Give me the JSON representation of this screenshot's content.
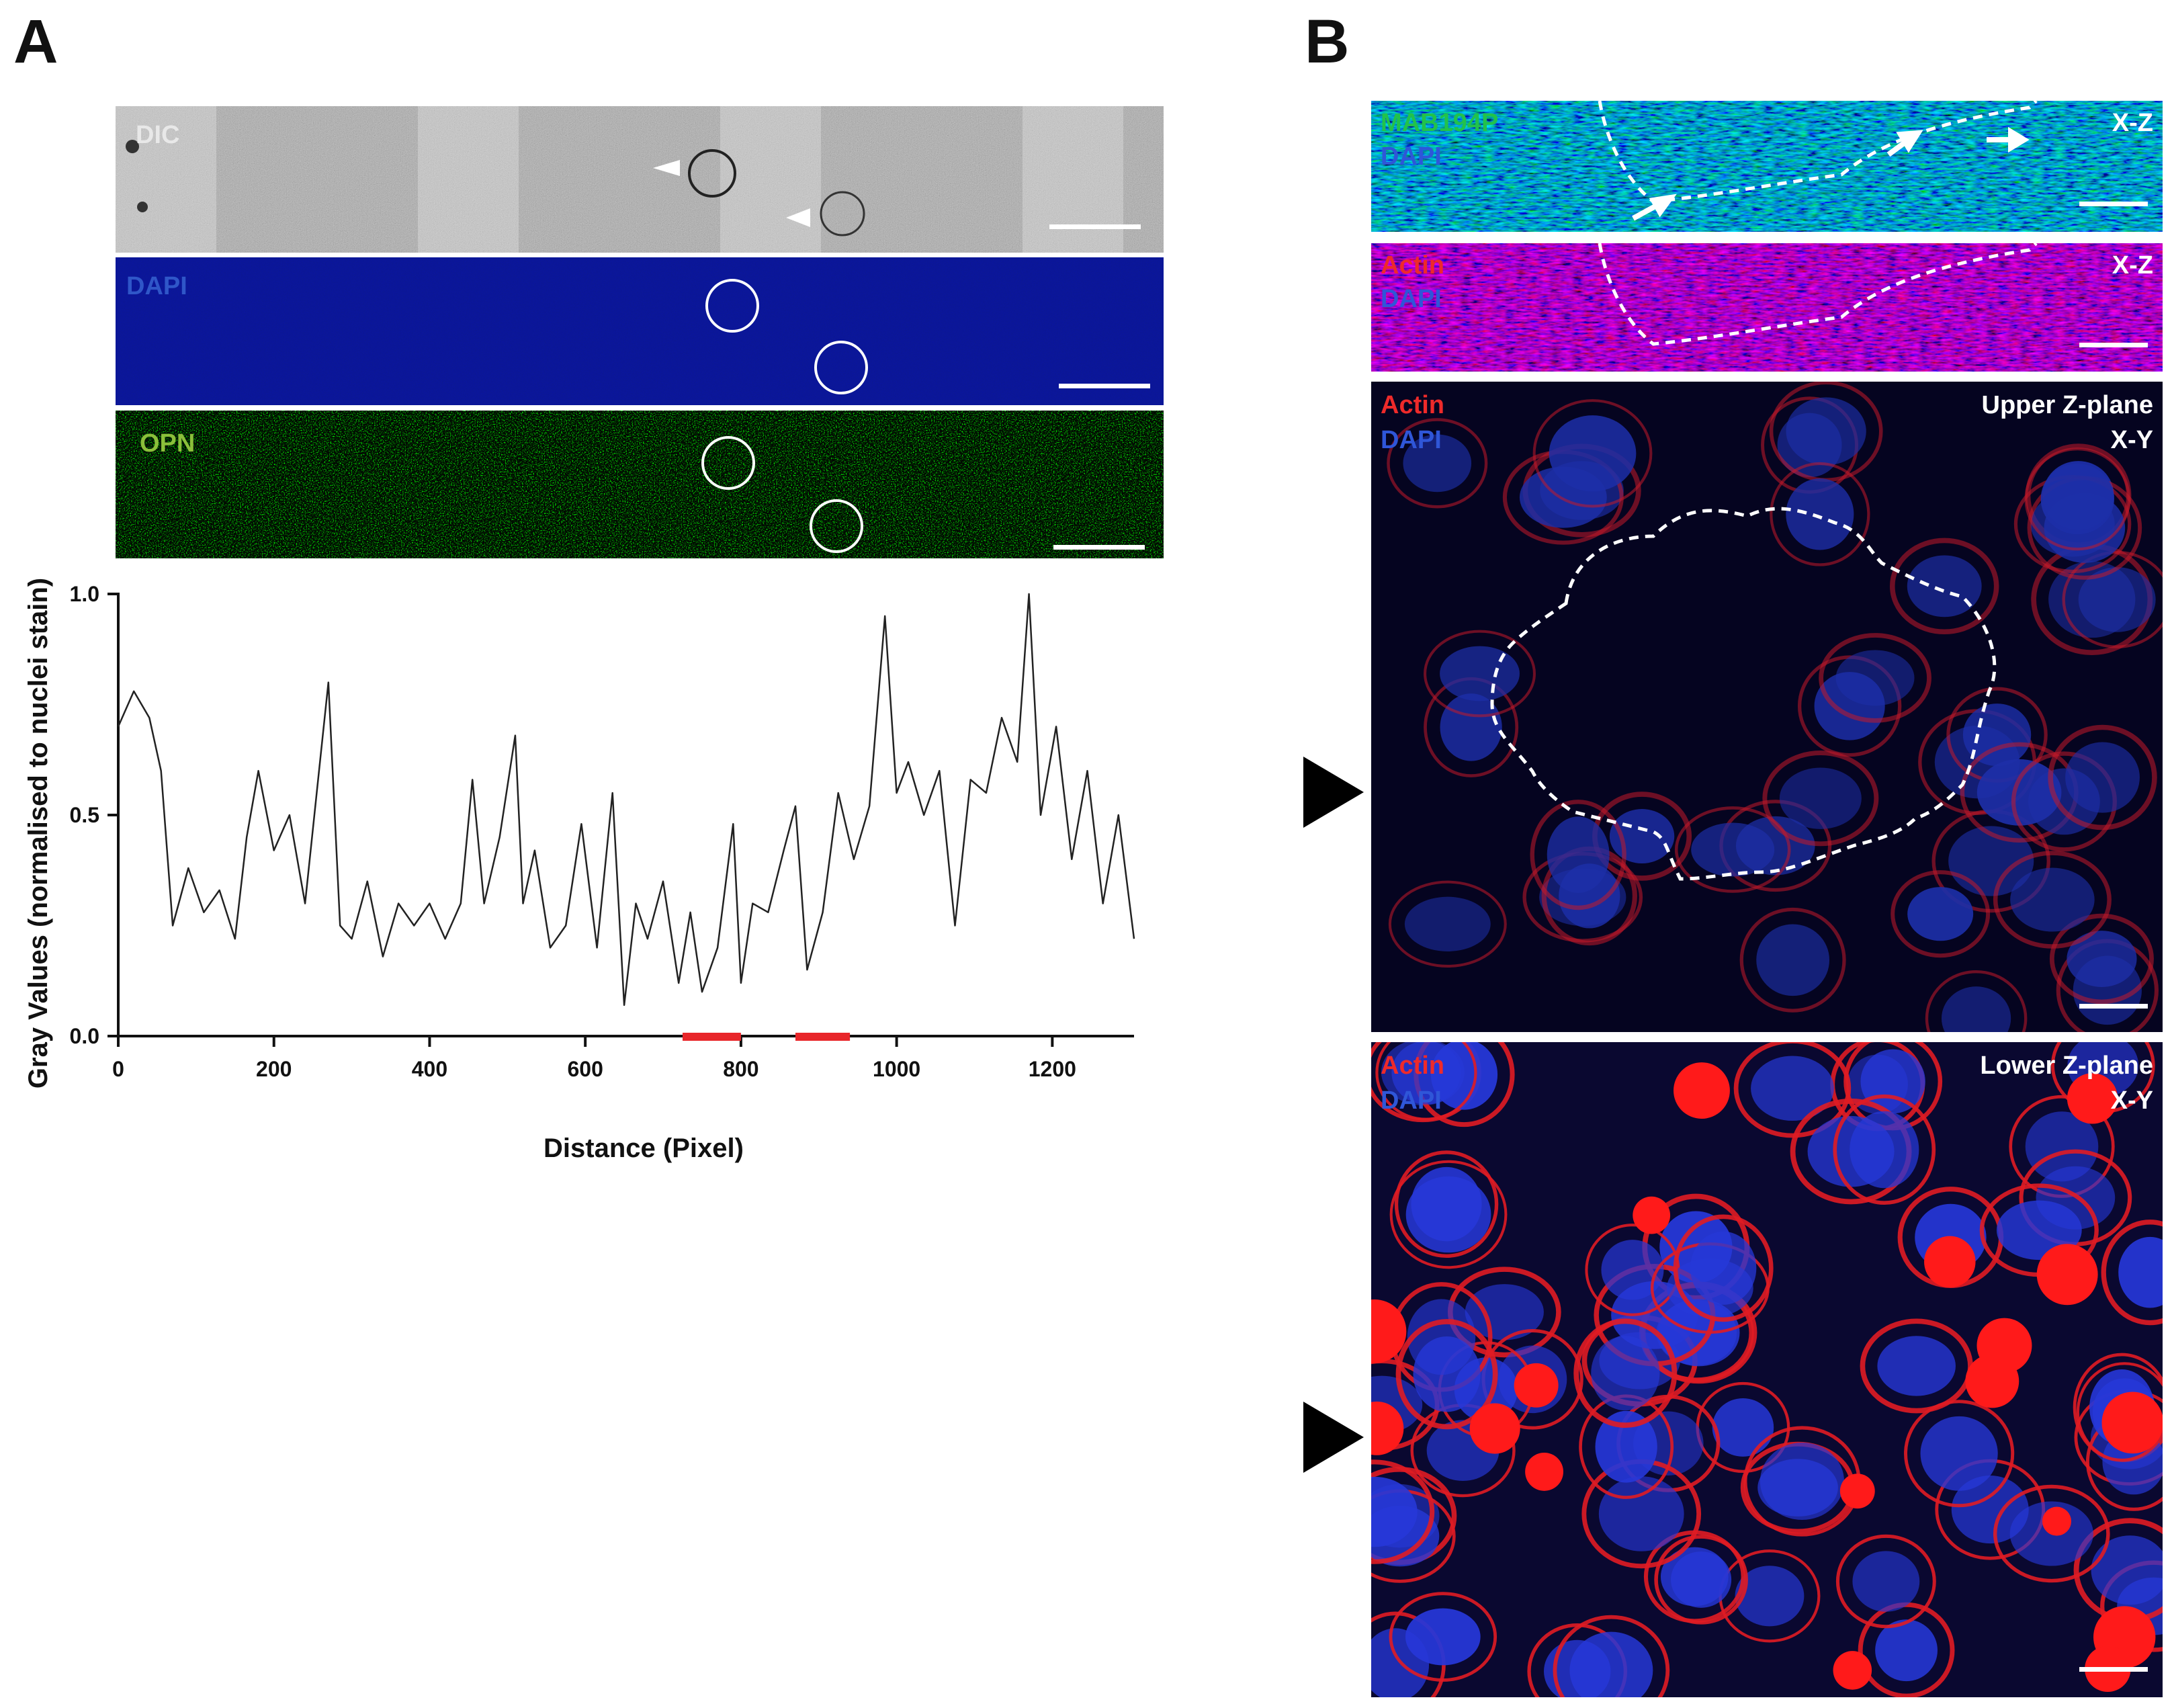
{
  "panel_a": {
    "letter": "A",
    "strips": [
      {
        "label": "DIC",
        "label_color": "#e8e8e8"
      },
      {
        "label": "DAPI",
        "label_color": "#2f56c8"
      },
      {
        "label": "OPN",
        "label_color": "#8bbf3a"
      }
    ]
  },
  "panel_b": {
    "letter": "B",
    "panels": [
      {
        "labels": [
          {
            "text": "MAB194P",
            "color": "#22c24a"
          },
          {
            "text": "DAPI",
            "color": "#2f56d8"
          }
        ],
        "right_labels": [
          "X-Z"
        ]
      },
      {
        "labels": [
          {
            "text": "Actin",
            "color": "#ee2a2a"
          },
          {
            "text": "DAPI",
            "color": "#2f56d8"
          }
        ],
        "right_labels": [
          "X-Z"
        ]
      },
      {
        "labels": [
          {
            "text": "Actin",
            "color": "#ee2a2a"
          },
          {
            "text": "DAPI",
            "color": "#2f56d8"
          }
        ],
        "right_labels": [
          "Upper Z-plane",
          "X-Y"
        ]
      },
      {
        "labels": [
          {
            "text": "Actin",
            "color": "#ee2a2a"
          },
          {
            "text": "DAPI",
            "color": "#2f56d8"
          }
        ],
        "right_labels": [
          "Lower Z-plane",
          "X-Y"
        ]
      }
    ]
  },
  "chart_data": {
    "type": "line",
    "xlabel": "Distance (Pixel)",
    "ylabel": "Gray Values (normalised to nuclei stain)",
    "xlim": [
      0,
      1305
    ],
    "ylim": [
      0,
      1.0
    ],
    "x_ticks": [
      "0",
      "200",
      "400",
      "600",
      "800",
      "1000",
      "1200"
    ],
    "y_ticks": [
      "0.0",
      "0.5",
      "1.0"
    ],
    "grid": false,
    "highlight_ranges": [
      [
        725,
        800
      ],
      [
        870,
        940
      ]
    ],
    "highlight_color": "#e8262a",
    "series": [
      {
        "x": [
          0,
          20,
          40,
          55,
          70,
          90,
          110,
          130,
          150,
          165,
          180,
          200,
          220,
          240,
          255,
          270,
          285,
          300,
          320,
          340,
          360,
          380,
          400,
          420,
          440,
          455,
          470,
          490,
          510,
          520,
          535,
          555,
          575,
          595,
          615,
          635,
          650,
          665,
          680,
          700,
          720,
          735,
          750,
          770,
          790,
          800,
          815,
          835,
          855,
          870,
          885,
          905,
          925,
          945,
          965,
          985,
          1000,
          1015,
          1035,
          1055,
          1075,
          1095,
          1115,
          1135,
          1155,
          1170,
          1185,
          1205,
          1225,
          1245,
          1265,
          1285,
          1305
        ],
        "y": [
          0.7,
          0.78,
          0.72,
          0.6,
          0.25,
          0.38,
          0.28,
          0.33,
          0.22,
          0.45,
          0.6,
          0.42,
          0.5,
          0.3,
          0.55,
          0.8,
          0.25,
          0.22,
          0.35,
          0.18,
          0.3,
          0.25,
          0.3,
          0.22,
          0.3,
          0.58,
          0.3,
          0.45,
          0.68,
          0.3,
          0.42,
          0.2,
          0.25,
          0.48,
          0.2,
          0.55,
          0.07,
          0.3,
          0.22,
          0.35,
          0.12,
          0.28,
          0.1,
          0.2,
          0.48,
          0.12,
          0.3,
          0.28,
          0.42,
          0.52,
          0.15,
          0.28,
          0.55,
          0.4,
          0.52,
          0.95,
          0.55,
          0.62,
          0.5,
          0.6,
          0.25,
          0.58,
          0.55,
          0.72,
          0.62,
          1.0,
          0.5,
          0.7,
          0.4,
          0.6,
          0.3,
          0.5,
          0.22
        ]
      }
    ]
  }
}
